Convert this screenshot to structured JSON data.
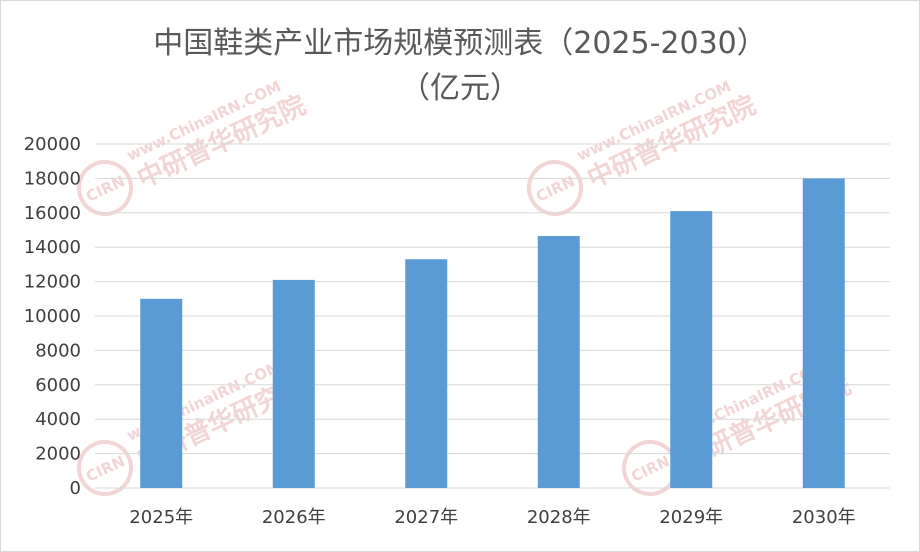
{
  "chart_data": {
    "type": "bar",
    "title": "中国鞋类产业市场规模预测表（2025-2030）",
    "subtitle": "（亿元）",
    "categories": [
      "2025年",
      "2026年",
      "2027年",
      "2028年",
      "2029年",
      "2030年"
    ],
    "series": [
      {
        "values": [
          11000,
          12100,
          13300,
          14650,
          16100,
          18000
        ]
      }
    ],
    "ylim": [
      0,
      20000
    ],
    "yticks": [
      "0",
      "2000",
      "4000",
      "6000",
      "8000",
      "10000",
      "12000",
      "14000",
      "16000",
      "18000",
      "20000"
    ],
    "xlabel": "",
    "ylabel": "",
    "grid": true,
    "bar_color": "#5b9bd5",
    "grid_color": "#d9d9d9"
  },
  "watermark": {
    "url": "www.ChinaIRN.COM",
    "name": "中研普华研究院",
    "badge": "CIRN",
    "color": "#e8b4b4"
  }
}
